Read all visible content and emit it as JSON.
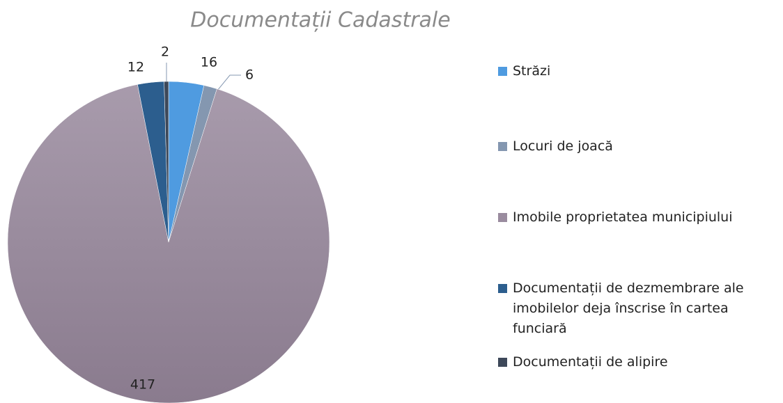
{
  "chart_data": {
    "type": "pie",
    "title": "Documentații Cadastrale",
    "categories": [
      "Străzi",
      "Locuri de joacă",
      "Imobile proprietatea municipiului",
      "Documentații de dezmembrare ale imobilelor deja înscrise în cartea funciară",
      "Documentații de alipire"
    ],
    "values": [
      16,
      6,
      417,
      12,
      2
    ],
    "colors": [
      "#4f9be0",
      "#8497b0",
      "#9a8c9f",
      "#2c5e8e",
      "#3d4859"
    ],
    "legend": "right"
  }
}
